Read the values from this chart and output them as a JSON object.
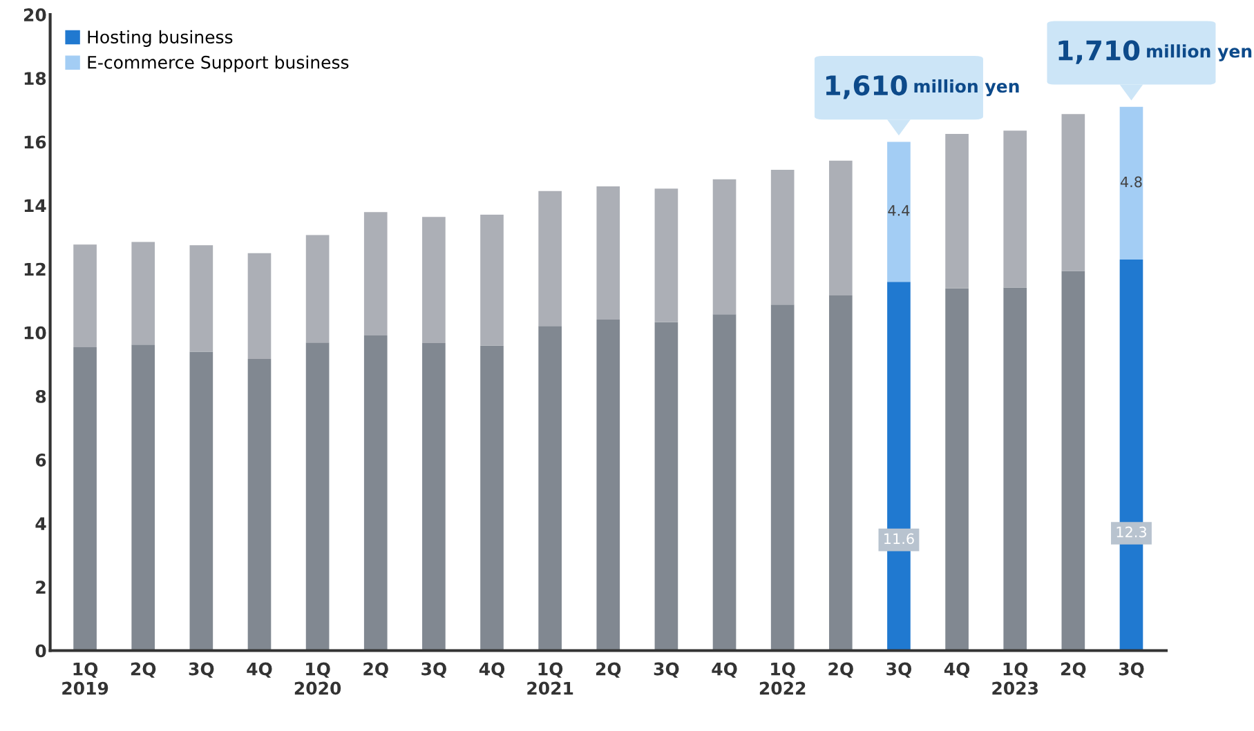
{
  "chart_data": {
    "type": "bar",
    "stacked": true,
    "categories": [
      "1Q\n2019",
      "2Q",
      "3Q",
      "4Q",
      "1Q\n2020",
      "2Q",
      "3Q",
      "4Q",
      "1Q\n2021",
      "2Q",
      "3Q",
      "4Q",
      "1Q\n2022",
      "2Q",
      "3Q",
      "4Q",
      "1Q\n2023",
      "2Q",
      "3Q"
    ],
    "series": [
      {
        "name": "Hosting business",
        "color": "#2079d0",
        "colors": [
          "#818891",
          "#818891",
          "#818891",
          "#818891",
          "#818891",
          "#818891",
          "#818891",
          "#818891",
          "#818891",
          "#818891",
          "#818891",
          "#818891",
          "#818891",
          "#818891",
          "#2079d0",
          "#818891",
          "#818891",
          "#818891",
          "#2079d0"
        ],
        "values": [
          9.54,
          9.62,
          9.4,
          9.17,
          9.69,
          9.91,
          9.67,
          9.59,
          10.21,
          10.41,
          10.33,
          10.58,
          10.88,
          11.17,
          11.6,
          11.39,
          11.42,
          11.94,
          12.3
        ],
        "value_labels": [
          null,
          null,
          null,
          null,
          null,
          null,
          null,
          null,
          null,
          null,
          null,
          null,
          null,
          null,
          "11.6",
          null,
          null,
          null,
          "12.3"
        ]
      },
      {
        "name": "E-commerce Support business",
        "color": "#a3cdf4",
        "colors": [
          "#acafb6",
          "#acafb6",
          "#acafb6",
          "#acafb6",
          "#acafb6",
          "#acafb6",
          "#acafb6",
          "#acafb6",
          "#acafb6",
          "#acafb6",
          "#acafb6",
          "#acafb6",
          "#acafb6",
          "#acafb6",
          "#a3cdf4",
          "#acafb6",
          "#acafb6",
          "#acafb6",
          "#a3cdf4"
        ],
        "values": [
          3.23,
          3.23,
          3.35,
          3.33,
          3.38,
          3.88,
          3.97,
          4.12,
          4.24,
          4.19,
          4.2,
          4.24,
          4.24,
          4.24,
          4.4,
          4.86,
          4.93,
          4.93,
          4.8
        ],
        "value_labels": [
          null,
          null,
          null,
          null,
          null,
          null,
          null,
          null,
          null,
          null,
          null,
          null,
          null,
          null,
          "4.4",
          null,
          null,
          null,
          "4.8"
        ]
      }
    ],
    "annotations": [
      "1,610 million yen",
      "1,710 million yen"
    ],
    "ylim": [
      0,
      20
    ],
    "yticks": [
      0,
      2,
      4,
      6,
      8,
      10,
      12,
      14,
      16,
      18,
      20
    ],
    "legend": "top left",
    "grid": false
  }
}
